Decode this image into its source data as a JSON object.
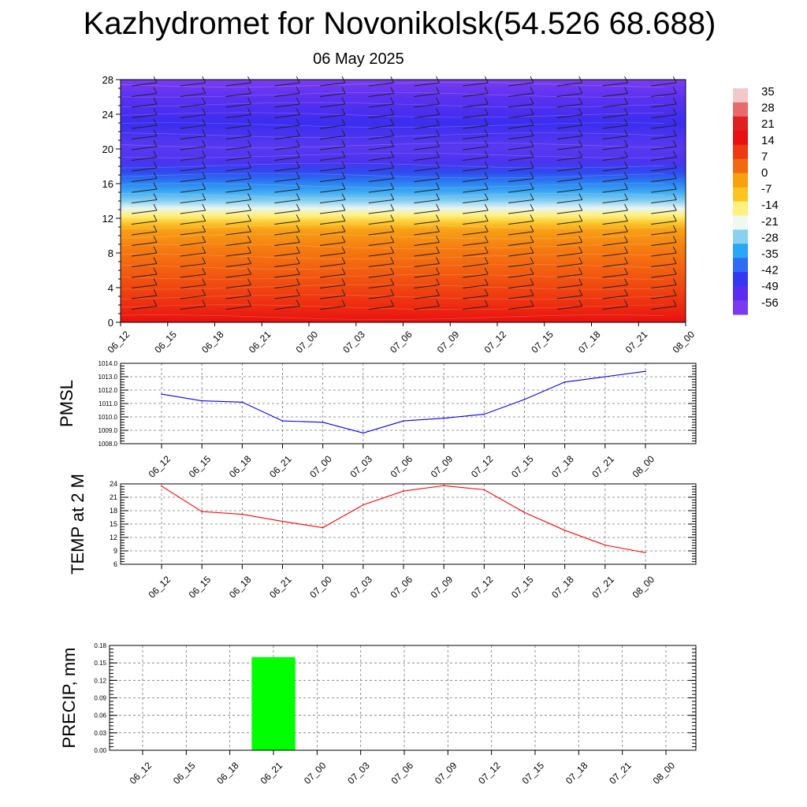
{
  "title": "Kazhydromet for Novonikolsk(54.526 68.688)",
  "subtitle": "06 May 2025",
  "colorbar": {
    "labels": [
      "35",
      "28",
      "21",
      "14",
      "7",
      "0",
      "-7",
      "-14",
      "-21",
      "-28",
      "-35",
      "-42",
      "-49",
      "-56"
    ],
    "colors": [
      "#f2c9c9",
      "#e86a6a",
      "#e02020",
      "#e81010",
      "#ee3a10",
      "#f26a10",
      "#f7a010",
      "#fbc420",
      "#fff080",
      "#f0f8f0",
      "#8ad0f0",
      "#2aa6f2",
      "#2e6cf2",
      "#3438f0",
      "#5a2cf0",
      "#7a3af0"
    ]
  },
  "chart_data": [
    {
      "type": "heatmap",
      "ylim": [
        0,
        28
      ],
      "yticks": [
        "0",
        "4",
        "8",
        "12",
        "16",
        "20",
        "24",
        "28"
      ],
      "categories": [
        "06_12",
        "06_15",
        "06_18",
        "06_21",
        "07_00",
        "07_03",
        "07_06",
        "07_09",
        "07_12",
        "07_15",
        "07_18",
        "07_21",
        "08_00"
      ]
    },
    {
      "type": "line",
      "ylabel": "PMSL",
      "categories": [
        "06_12",
        "06_15",
        "06_18",
        "06_21",
        "07_00",
        "07_03",
        "07_06",
        "07_09",
        "07_12",
        "07_15",
        "07_18",
        "07_21",
        "08_00"
      ],
      "values": [
        1011.7,
        1011.2,
        1011.1,
        1009.7,
        1009.6,
        1008.8,
        1009.7,
        1009.9,
        1010.2,
        1011.3,
        1012.6,
        1013.0,
        1013.4
      ],
      "ylim": [
        1008.0,
        1014.0
      ],
      "yticks": [
        "1008.0",
        "1009.0",
        "1010.0",
        "1011.0",
        "1012.0",
        "1013.0",
        "1014.0"
      ],
      "color": "#0000ff"
    },
    {
      "type": "line",
      "ylabel": "TEMP at 2 M",
      "categories": [
        "06_12",
        "06_15",
        "06_18",
        "06_21",
        "07_00",
        "07_03",
        "07_06",
        "07_09",
        "07_12",
        "07_15",
        "07_18",
        "07_21",
        "08_00"
      ],
      "values": [
        23.5,
        17.8,
        17.2,
        15.6,
        14.2,
        19.3,
        22.4,
        23.6,
        22.7,
        17.6,
        13.6,
        10.3,
        8.6
      ],
      "ylim": [
        6,
        24
      ],
      "yticks": [
        "6",
        "9",
        "12",
        "15",
        "18",
        "21",
        "24"
      ],
      "color": "#ff0000"
    },
    {
      "type": "bar",
      "ylabel": "PRECIP, mm",
      "categories": [
        "06_12",
        "06_15",
        "06_18",
        "06_21",
        "07_00",
        "07_03",
        "07_06",
        "07_09",
        "07_12",
        "07_15",
        "07_18",
        "07_21",
        "08_00"
      ],
      "values": [
        0,
        0,
        0,
        0.16,
        0,
        0,
        0,
        0,
        0,
        0,
        0,
        0,
        0
      ],
      "ylim": [
        0,
        0.18
      ],
      "yticks": [
        "0.00",
        "0.03",
        "0.06",
        "0.09",
        "0.12",
        "0.15",
        "0.18"
      ],
      "color": "#00ff00"
    }
  ]
}
